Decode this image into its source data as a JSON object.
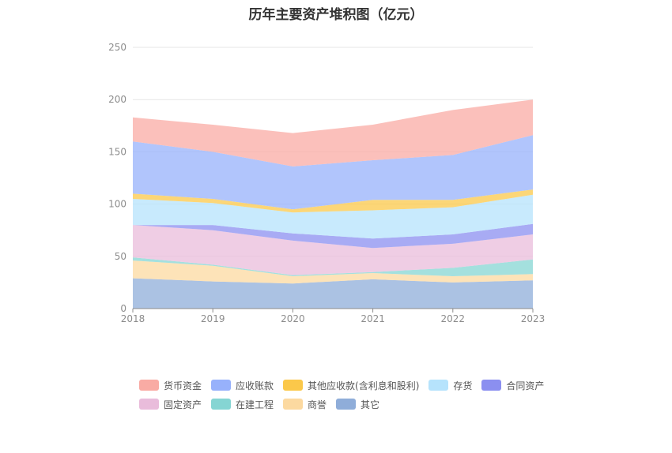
{
  "chart_data": {
    "type": "area",
    "stacked": true,
    "title": "历年主要资产堆积图（亿元）",
    "x": [
      "2018",
      "2019",
      "2020",
      "2021",
      "2022",
      "2023"
    ],
    "ylim": [
      0,
      250
    ],
    "yticks": [
      "0",
      "50",
      "100",
      "150",
      "200",
      "250"
    ],
    "grid": true,
    "legend_position": "bottom",
    "series": [
      {
        "name": "其它",
        "color": "#8fadd9",
        "values": [
          29,
          26,
          24,
          28,
          25,
          27
        ]
      },
      {
        "name": "商誉",
        "color": "#fcd9a0",
        "values": [
          17,
          15,
          7,
          6,
          6,
          6
        ]
      },
      {
        "name": "在建工程",
        "color": "#85d5d3",
        "values": [
          3,
          1,
          1,
          1,
          8,
          14
        ]
      },
      {
        "name": "固定资产",
        "color": "#e9bcdb",
        "values": [
          31,
          33,
          33,
          23,
          23,
          24
        ]
      },
      {
        "name": "合同资产",
        "color": "#8b8ff0",
        "values": [
          0,
          5,
          7,
          9,
          9,
          10
        ]
      },
      {
        "name": "存货",
        "color": "#b6e3fc",
        "values": [
          25,
          21,
          20,
          27,
          26,
          28
        ]
      },
      {
        "name": "其他应收款(含利息和股利)",
        "color": "#fbc84a",
        "values": [
          5,
          4,
          3,
          10,
          7,
          5
        ]
      },
      {
        "name": "应收账款",
        "color": "#97b1fb",
        "values": [
          50,
          45,
          41,
          38,
          43,
          52
        ]
      },
      {
        "name": "货币资金",
        "color": "#f9aba4",
        "values": [
          23,
          26,
          32,
          34,
          43,
          34
        ]
      }
    ],
    "legend_order": [
      "货币资金",
      "应收账款",
      "其他应收款(含利息和股利)",
      "存货",
      "合同资产",
      "固定资产",
      "在建工程",
      "商誉",
      "其它"
    ]
  }
}
